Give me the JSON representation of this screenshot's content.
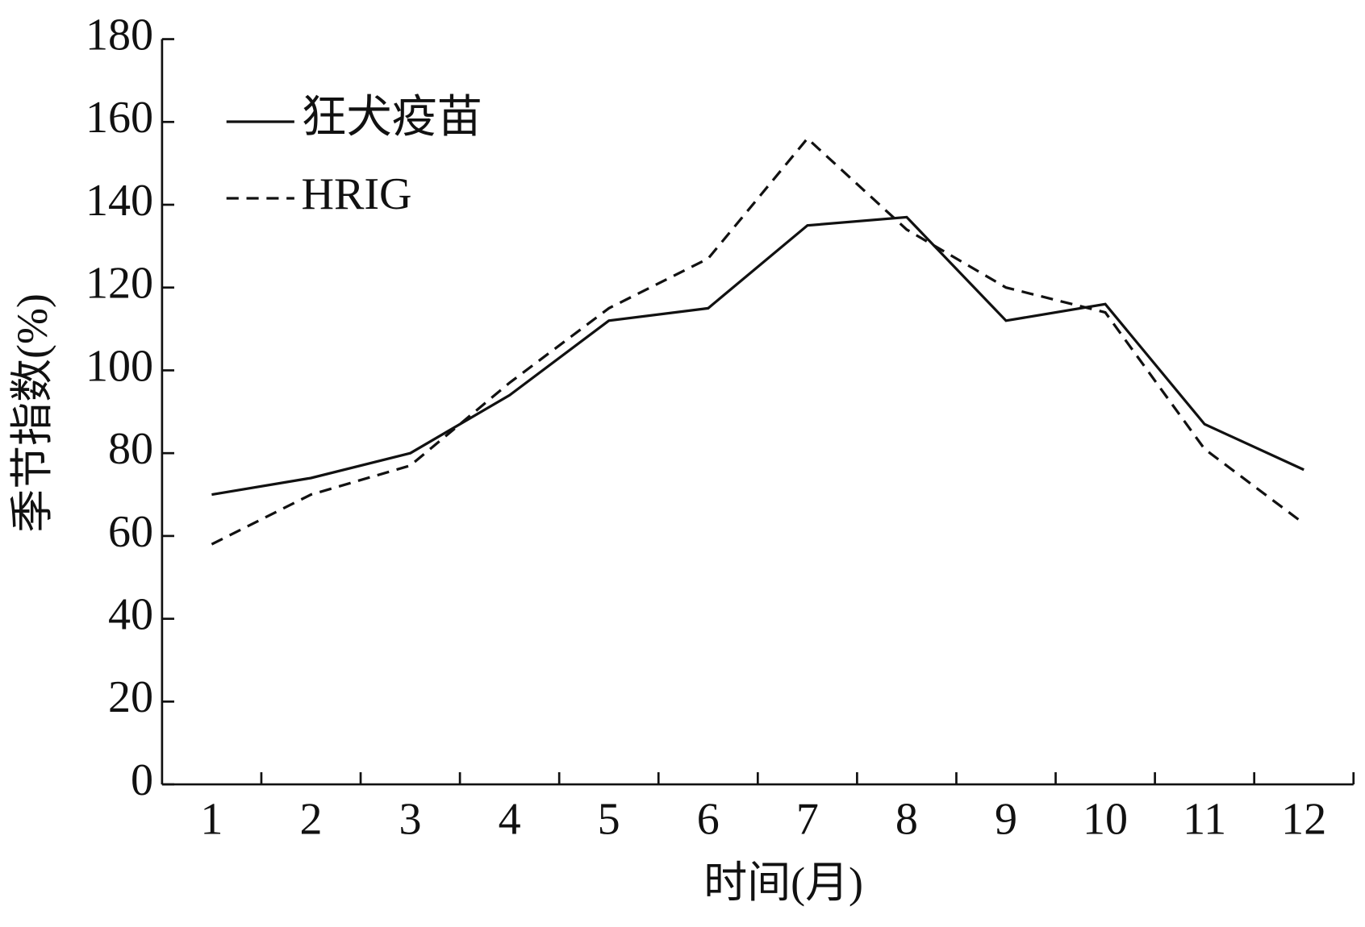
{
  "chart_data": {
    "type": "line",
    "xlabel": "时间(月)",
    "ylabel": "季节指数(%)",
    "categories": [
      "1",
      "2",
      "3",
      "4",
      "5",
      "6",
      "7",
      "8",
      "9",
      "10",
      "11",
      "12"
    ],
    "series": [
      {
        "name": "狂犬疫苗",
        "color": "#111111",
        "dash": "solid",
        "values": [
          70,
          74,
          80,
          94,
          112,
          115,
          135,
          137,
          112,
          116,
          87,
          76
        ]
      },
      {
        "name": "HRIG",
        "color": "#111111",
        "dash": "dashed",
        "values": [
          58,
          70,
          77,
          97,
          115,
          127,
          156,
          134,
          120,
          114,
          81,
          63
        ]
      }
    ],
    "ylim": [
      0,
      180
    ],
    "yticks": [
      0,
      20,
      40,
      60,
      80,
      100,
      120,
      140,
      160,
      180
    ],
    "legend": "upper left",
    "grid": false
  }
}
